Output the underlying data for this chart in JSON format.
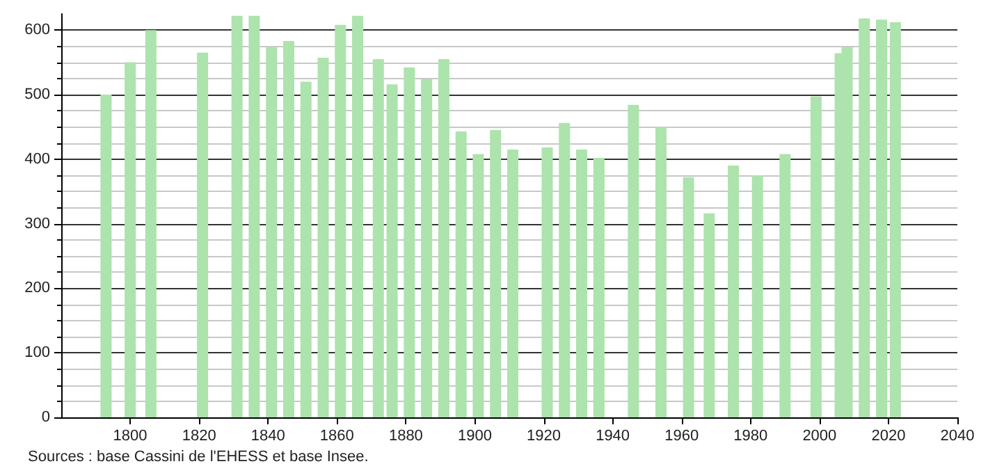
{
  "chart_data": {
    "type": "bar",
    "x": [
      1793,
      1800,
      1806,
      1821,
      1831,
      1836,
      1841,
      1846,
      1851,
      1856,
      1861,
      1866,
      1872,
      1876,
      1881,
      1886,
      1891,
      1896,
      1901,
      1906,
      1911,
      1921,
      1926,
      1931,
      1936,
      1946,
      1954,
      1962,
      1968,
      1975,
      1982,
      1990,
      1999,
      2006,
      2008,
      2013,
      2018,
      2022
    ],
    "values": [
      500,
      550,
      600,
      565,
      622,
      622,
      574,
      583,
      520,
      557,
      608,
      622,
      555,
      516,
      542,
      524,
      555,
      443,
      408,
      445,
      415,
      418,
      456,
      415,
      402,
      484,
      450,
      372,
      316,
      390,
      375,
      408,
      497,
      564,
      574,
      618,
      616,
      612
    ],
    "color": "#ade3ad",
    "xlim": [
      1780,
      2040
    ],
    "xticks": [
      1800,
      1820,
      1840,
      1860,
      1880,
      1900,
      1920,
      1940,
      1960,
      1980,
      2000,
      2020,
      2040
    ],
    "ylim": [
      0,
      625
    ],
    "yticks": [
      0,
      100,
      200,
      300,
      400,
      500,
      600
    ],
    "grid": "y",
    "annotations": [
      "Sources : base Cassini de l'EHESS et base Insee."
    ]
  }
}
